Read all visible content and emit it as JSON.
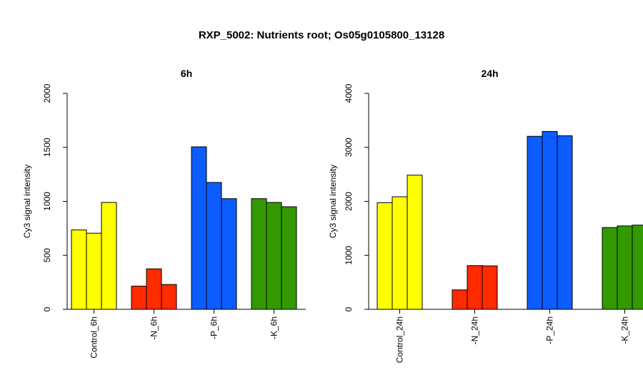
{
  "title": "RXP_5002: Nutrients root; Os05g0105800_13128",
  "chart_data": [
    {
      "type": "bar",
      "title": "6h",
      "ylabel": "Cy3 signal intensity",
      "ylim": [
        0,
        2000
      ],
      "yticks": [
        0,
        500,
        1000,
        1500,
        2000
      ],
      "categories": [
        "Control_6h",
        "-N_6h",
        "-P_6h",
        "-K_6h"
      ],
      "colors": [
        "#ffff00",
        "#ff2a00",
        "#0d5cff",
        "#339900"
      ],
      "values": [
        [
          735,
          705,
          990
        ],
        [
          215,
          375,
          230
        ],
        [
          1505,
          1175,
          1025
        ],
        [
          1025,
          990,
          950
        ]
      ]
    },
    {
      "type": "bar",
      "title": "24h",
      "ylabel": "Cy3 signal intensity",
      "ylim": [
        0,
        4000
      ],
      "yticks": [
        0,
        1000,
        2000,
        3000,
        4000
      ],
      "categories": [
        "Control_24h",
        "-N_24h",
        "-P_24h",
        "-K_24h"
      ],
      "colors": [
        "#ffff00",
        "#ff2a00",
        "#0d5cff",
        "#339900"
      ],
      "values": [
        [
          1975,
          2085,
          2485
        ],
        [
          360,
          810,
          805
        ],
        [
          3205,
          3295,
          3215
        ],
        [
          1515,
          1545,
          1560
        ]
      ]
    }
  ]
}
